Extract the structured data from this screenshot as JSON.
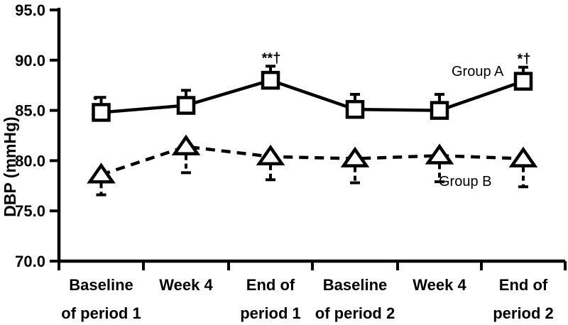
{
  "figure": {
    "background_color": "#ffffff",
    "ink_color": "#000000"
  },
  "chart_data": {
    "type": "line",
    "title": "",
    "xlabel": "",
    "ylabel": "DBP (mmHg)",
    "ylim": [
      70.0,
      95.0
    ],
    "ytick_labels": [
      "70.0",
      "75.0",
      "80.0",
      "85.0",
      "90.0",
      "95.0"
    ],
    "ytick_values": [
      70,
      75,
      80,
      85,
      90,
      95
    ],
    "grid": "off",
    "categories": [
      "Baseline of period 1",
      "Week 4",
      "End of period 1",
      "Baseline of period 2",
      "Week 4",
      "End of period 2"
    ],
    "category_label_lines": [
      [
        "Baseline",
        "of period 1"
      ],
      [
        "Week 4",
        ""
      ],
      [
        "End of",
        "period 1"
      ],
      [
        "Baseline",
        "of period 2"
      ],
      [
        "Week 4",
        ""
      ],
      [
        "End of",
        "period 2"
      ]
    ],
    "series": [
      {
        "name": "Group A",
        "marker": "square",
        "line_style": "solid",
        "values": [
          84.8,
          85.5,
          88.0,
          85.1,
          85.0,
          87.9
        ],
        "error_up": [
          1.5,
          1.5,
          1.4,
          1.5,
          1.6,
          1.4
        ],
        "error_down": [
          0,
          0,
          0,
          0,
          0,
          0
        ]
      },
      {
        "name": "Group B",
        "marker": "triangle",
        "line_style": "dashed",
        "values": [
          78.6,
          81.4,
          80.4,
          80.2,
          80.5,
          80.2
        ],
        "error_up": [
          0,
          0,
          0,
          0,
          0,
          0
        ],
        "error_down": [
          2.0,
          2.6,
          2.3,
          2.4,
          2.6,
          2.8
        ]
      }
    ],
    "annotations": [
      {
        "series": "Group A",
        "point_index": 0,
        "text": "•",
        "placement": "cap-left"
      },
      {
        "series": "Group A",
        "point_index": 2,
        "text": "**†",
        "placement": "above"
      },
      {
        "series": "Group A",
        "point_index": 5,
        "text": "*†",
        "placement": "above"
      }
    ],
    "legend": {
      "position": "inline-right-of-lines",
      "entries": [
        "Group A",
        "Group B"
      ]
    }
  }
}
